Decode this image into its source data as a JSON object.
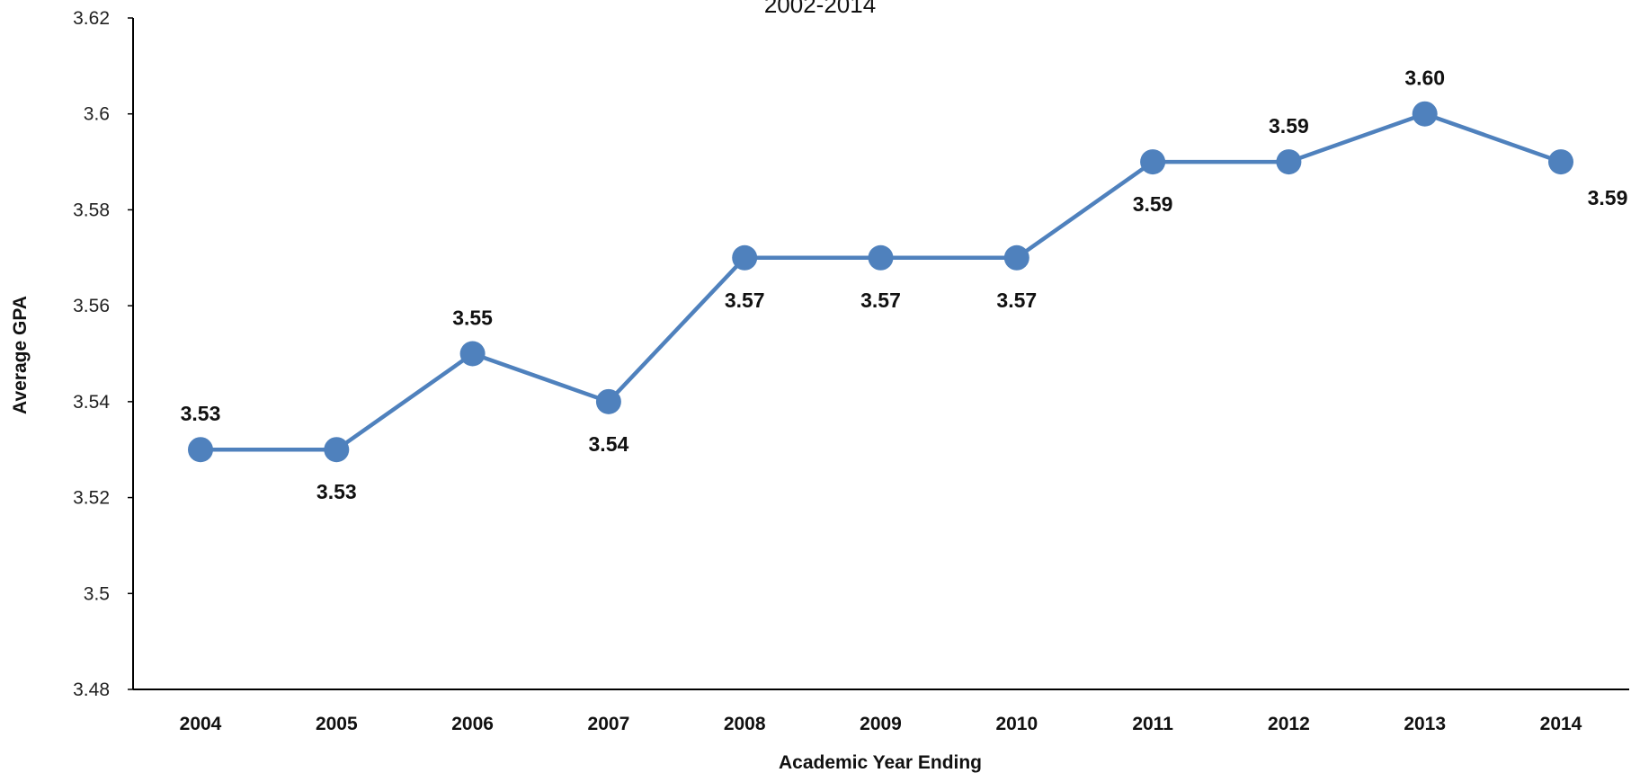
{
  "chart_data": {
    "type": "line",
    "title": "2002-2014",
    "xlabel": "Academic Year Ending",
    "ylabel": "Average GPA",
    "ylim": [
      3.48,
      3.62
    ],
    "yticks": [
      "3.48",
      "3.5",
      "3.52",
      "3.54",
      "3.56",
      "3.58",
      "3.6",
      "3.62"
    ],
    "categories": [
      "2004",
      "2005",
      "2006",
      "2007",
      "2008",
      "2009",
      "2010",
      "2011",
      "2012",
      "2013",
      "2014"
    ],
    "series": [
      {
        "values": [
          3.53,
          3.53,
          3.55,
          3.54,
          3.57,
          3.57,
          3.57,
          3.59,
          3.59,
          3.6,
          3.59
        ],
        "labels": [
          "3.53",
          "3.53",
          "3.55",
          "3.54",
          "3.57",
          "3.57",
          "3.57",
          "3.59",
          "3.59",
          "3.60",
          "3.59"
        ],
        "label_positions": [
          "above",
          "below",
          "above",
          "below",
          "below",
          "below",
          "below",
          "below",
          "above",
          "above",
          "right-below"
        ]
      }
    ],
    "line_color": "#4f81bd",
    "axis_color": "#000000",
    "grid": false,
    "legend": "none"
  }
}
